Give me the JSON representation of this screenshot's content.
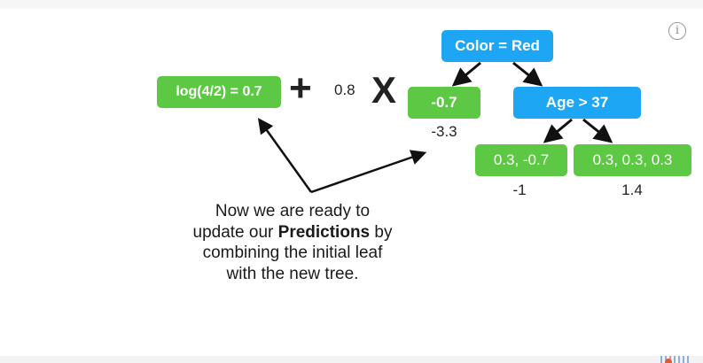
{
  "tree": {
    "root": {
      "label": "Color = Red"
    },
    "age_node": {
      "label": "Age > 37"
    },
    "leaves": {
      "left": {
        "residuals": "-0.7",
        "output": "-3.3"
      },
      "mid": {
        "residuals": "0.3, -0.7",
        "output": "-1"
      },
      "right": {
        "residuals": "0.3, 0.3, 0.3",
        "output": "1.4"
      }
    }
  },
  "formula": {
    "initial_leaf": "log(4/2) = 0.7",
    "plus": "+",
    "learning_rate": "0.8",
    "times": "X"
  },
  "caption": {
    "line1": "Now we are ready to",
    "line2_before": "update our ",
    "line2_bold": "Predictions",
    "line2_after": " by",
    "line3": "combining the initial leaf",
    "line4": "with the new tree."
  },
  "ui": {
    "info_icon": "info-icon",
    "info_symbol": "i"
  },
  "colors": {
    "leaf_green": "#5dc843",
    "node_blue": "#1da6f4",
    "arrow": "#111111"
  }
}
